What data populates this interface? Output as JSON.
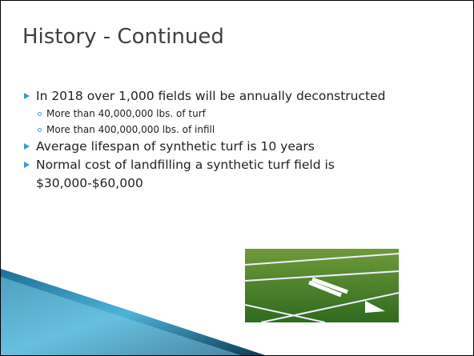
{
  "title": "History - Continued",
  "bullets": [
    {
      "text": "In 2018 over 1,000 fields will be annually deconstructed",
      "sub": [
        "More than 40,000,000 lbs. of turf",
        "More than 400,000,000 lbs. of infill"
      ]
    },
    {
      "text": "Average lifespan of synthetic turf is 10 years",
      "sub": []
    },
    {
      "text": "Normal cost of landfilling a synthetic turf field is $30,000-$60,000",
      "sub": []
    }
  ]
}
